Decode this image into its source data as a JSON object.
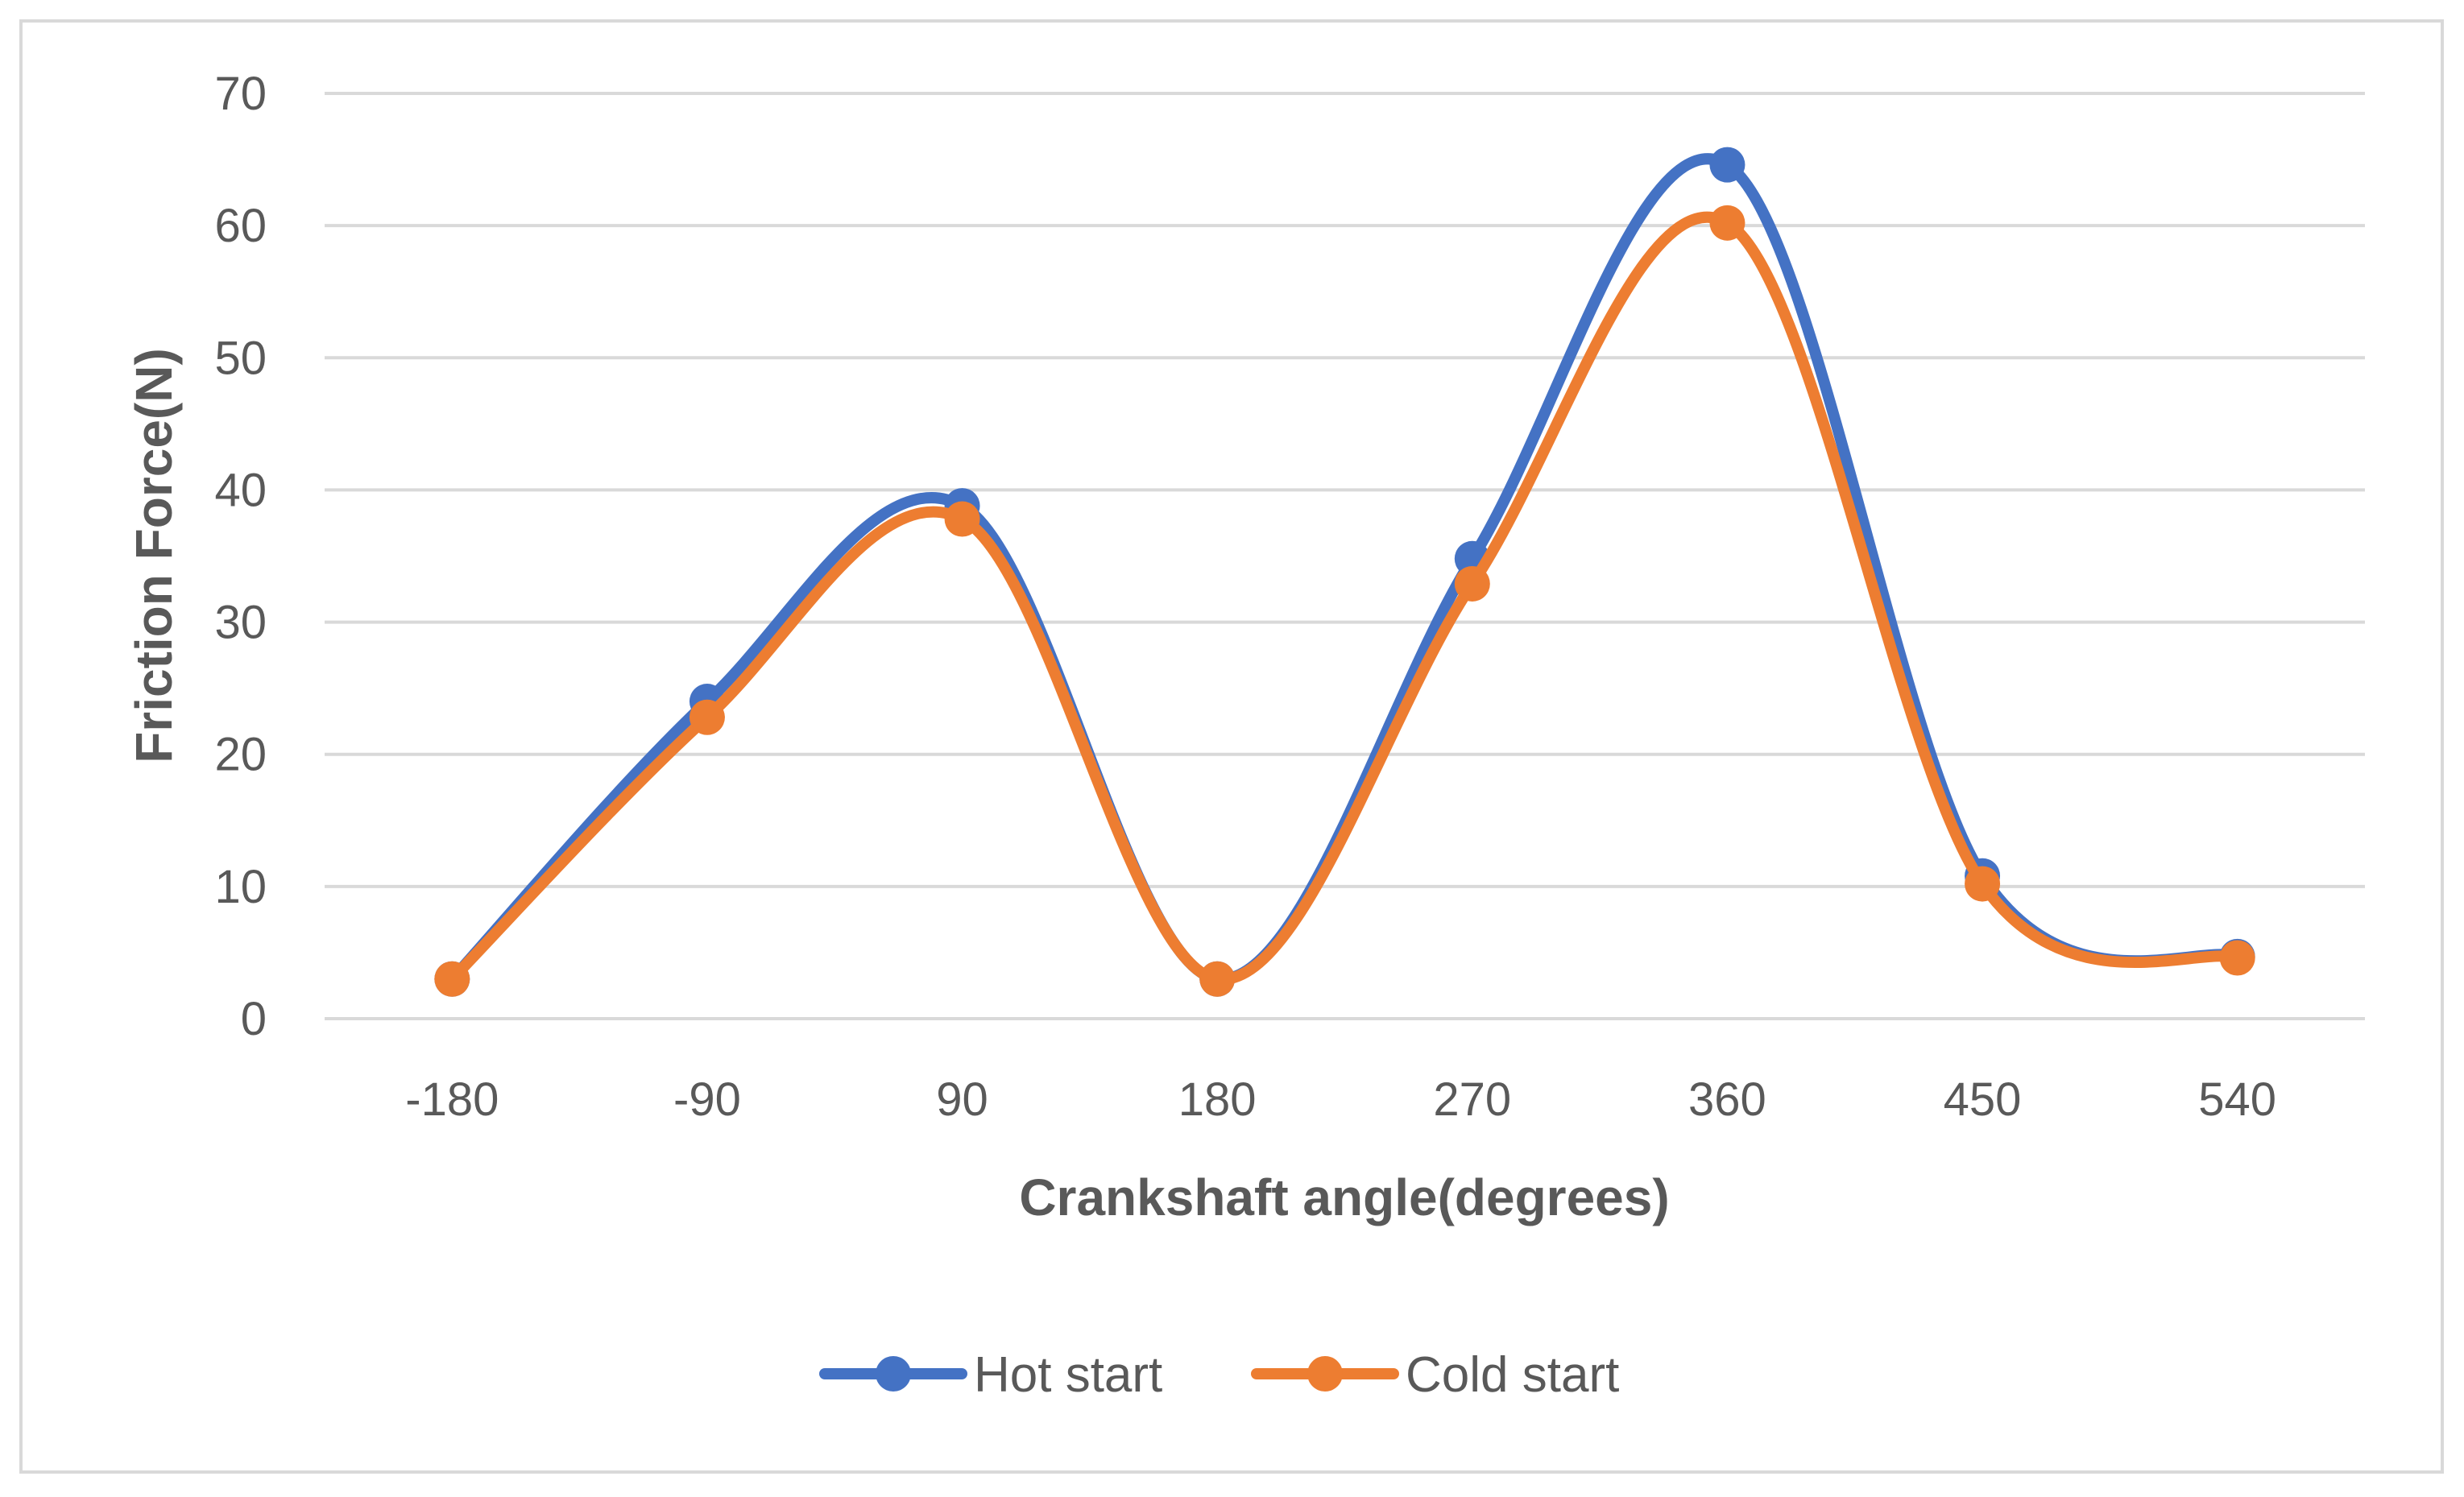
{
  "chart_data": {
    "type": "line",
    "smooth": true,
    "categories": [
      "-180",
      "-90",
      "90",
      "180",
      "270",
      "360",
      "450",
      "540"
    ],
    "series": [
      {
        "name": "Hot start",
        "color": "#4472c4",
        "values": [
          3.0,
          24.0,
          38.8,
          3.0,
          34.8,
          64.6,
          10.8,
          4.7
        ]
      },
      {
        "name": "Cold start",
        "color": "#ed7d31",
        "values": [
          3.0,
          22.8,
          37.8,
          3.0,
          32.9,
          60.2,
          10.2,
          4.6
        ]
      }
    ],
    "title": "",
    "xlabel": "Crankshaft angle(degrees)",
    "ylabel": "Friction Force(N)",
    "ylim": [
      0,
      70
    ],
    "yticks": [
      0,
      10,
      20,
      30,
      40,
      50,
      60,
      70
    ],
    "grid": true,
    "legend_position": "bottom"
  }
}
